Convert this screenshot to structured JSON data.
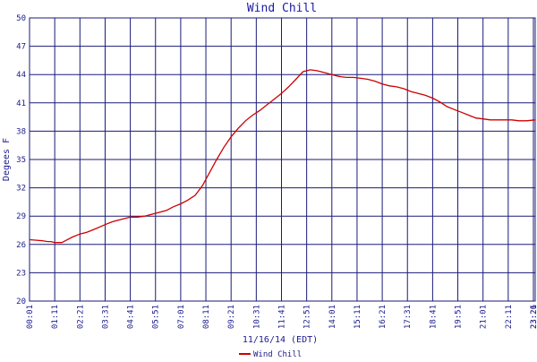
{
  "chart_data": {
    "type": "line",
    "title": "Wind Chill",
    "xlabel": "11/16/14 (EDT)",
    "ylabel": "Degees F",
    "ylim": [
      20,
      50
    ],
    "y_ticks": [
      "20",
      "23",
      "26",
      "29",
      "32",
      "35",
      "38",
      "41",
      "44",
      "47",
      "50"
    ],
    "x_ticks": [
      "00:01",
      "01:11",
      "02:21",
      "03:31",
      "04:41",
      "05:51",
      "07:01",
      "08:11",
      "09:21",
      "10:31",
      "11:41",
      "12:51",
      "14:01",
      "15:11",
      "16:21",
      "17:31",
      "18:41",
      "19:51",
      "21:01",
      "22:11",
      "23:21",
      "23:26"
    ],
    "xlim": [
      0,
      1405
    ],
    "grid": true,
    "legend": "bottom-center",
    "series": [
      {
        "name": "Wind Chill",
        "color": "#cc0000",
        "x": [
          0,
          35,
          50,
          60,
          70,
          80,
          90,
          100,
          120,
          140,
          160,
          180,
          210,
          230,
          250,
          280,
          300,
          320,
          340,
          360,
          380,
          400,
          420,
          440,
          460,
          480,
          500,
          520,
          540,
          560,
          580,
          600,
          620,
          640,
          660,
          680,
          700,
          720,
          740,
          760,
          780,
          800,
          820,
          840,
          860,
          880,
          900,
          920,
          940,
          960,
          980,
          1000,
          1020,
          1040,
          1060,
          1080,
          1100,
          1120,
          1140,
          1160,
          1180,
          1200,
          1220,
          1240,
          1260,
          1280,
          1300,
          1320,
          1340,
          1360,
          1380,
          1405
        ],
        "values": [
          26.5,
          26.4,
          26.3,
          26.3,
          26.2,
          26.2,
          26.2,
          26.4,
          26.8,
          27.1,
          27.3,
          27.6,
          28.1,
          28.4,
          28.6,
          28.9,
          28.9,
          29.0,
          29.2,
          29.4,
          29.6,
          30.0,
          30.3,
          30.7,
          31.2,
          32.2,
          33.6,
          35.0,
          36.3,
          37.4,
          38.3,
          39.1,
          39.7,
          40.2,
          40.8,
          41.4,
          42.0,
          42.7,
          43.5,
          44.3,
          44.5,
          44.4,
          44.2,
          44.0,
          43.8,
          43.7,
          43.7,
          43.6,
          43.5,
          43.3,
          43.0,
          42.8,
          42.7,
          42.5,
          42.2,
          42.0,
          41.8,
          41.5,
          41.1,
          40.6,
          40.3,
          40.0,
          39.7,
          39.4,
          39.3,
          39.2,
          39.2,
          39.2,
          39.2,
          39.1,
          39.1,
          39.2
        ]
      }
    ]
  }
}
